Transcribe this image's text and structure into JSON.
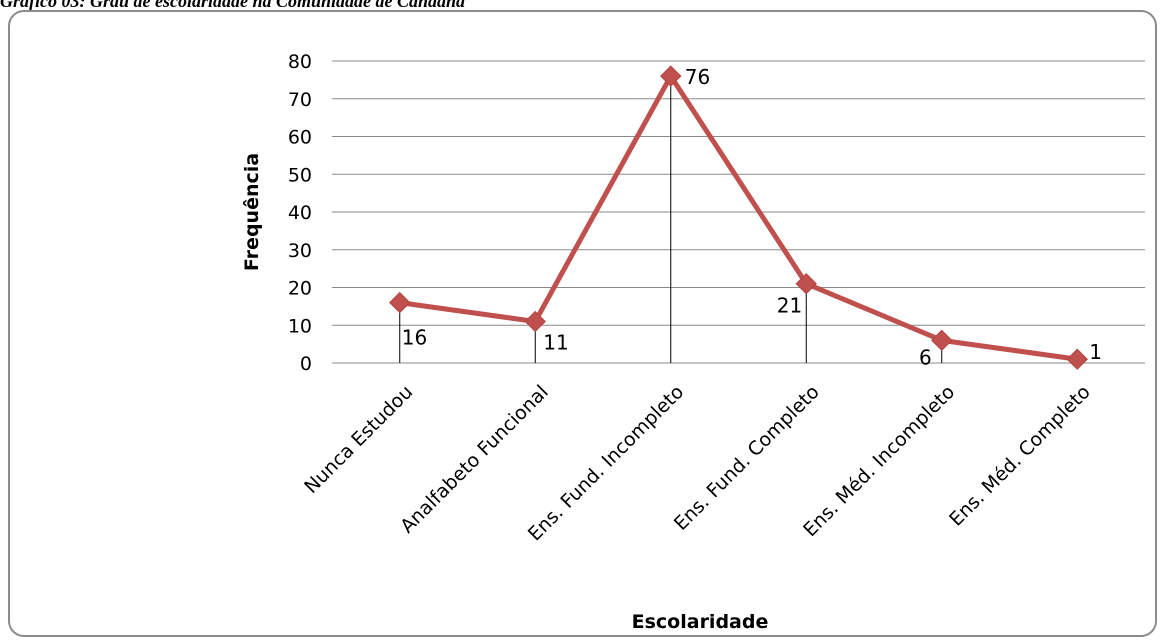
{
  "caption": "Gráfico 03: Grau de escolaridade na Comunidade de Canaãna",
  "chart_data": {
    "type": "line",
    "categories": [
      "Nunca Estudou",
      "Analfabeto Funcional",
      "Ens. Fund. Incompleto",
      "Ens. Fund. Completo",
      "Ens. Méd. Incompleto",
      "Ens. Méd. Completo"
    ],
    "series": [
      {
        "values": [
          16,
          11,
          76,
          21,
          6,
          1
        ],
        "color": "#c0504d",
        "marker": "diamond"
      }
    ],
    "data_labels": [
      "16",
      "11",
      "76",
      "21",
      "6",
      "1"
    ],
    "xlabel": "Escolaridade",
    "ylabel": "Frequência",
    "ylim": [
      0,
      80
    ],
    "yticks": [
      0,
      10,
      20,
      30,
      40,
      50,
      60,
      70,
      80
    ],
    "grid": true,
    "drop_lines": true,
    "legend": "none"
  }
}
